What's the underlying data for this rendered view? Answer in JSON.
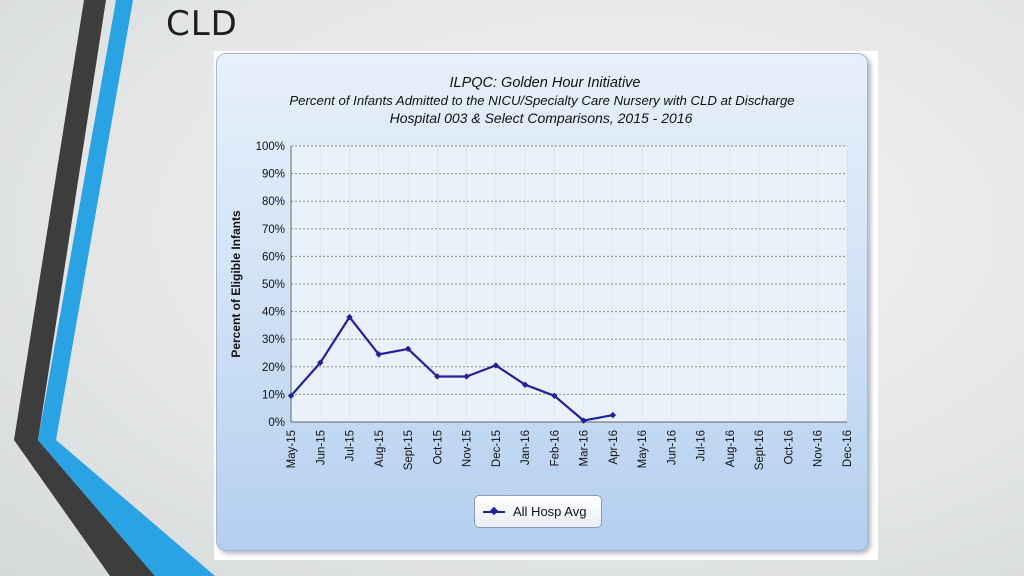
{
  "slide": {
    "title": "CLD"
  },
  "colors": {
    "series_line": "#21219a",
    "plot_background": "#e9f1fb",
    "gridline": "#8a8a8a",
    "deco_dark": "#3d3d3d",
    "deco_light": "#29a3e3"
  },
  "chart_data": {
    "type": "line",
    "title_lines": [
      "ILPQC: Golden Hour Initiative",
      "Percent of Infants Admitted to the NICU/Specialty Care Nursery with CLD at Discharge",
      "Hospital 003 & Select Comparisons, 2015 - 2016"
    ],
    "xlabel": "",
    "ylabel": "Percent of Eligible Infants",
    "categories": [
      "May-15",
      "Jun-15",
      "Jul-15",
      "Aug-15",
      "Sept-15",
      "Oct-15",
      "Nov-15",
      "Dec-15",
      "Jan-16",
      "Feb-16",
      "Mar-16",
      "Apr-16",
      "May-16",
      "Jun-16",
      "Jul-16",
      "Aug-16",
      "Sept-16",
      "Oct-16",
      "Nov-16",
      "Dec-16"
    ],
    "y_ticks": [
      "0%",
      "10%",
      "20%",
      "30%",
      "40%",
      "50%",
      "60%",
      "70%",
      "80%",
      "90%",
      "100%"
    ],
    "ylim": [
      0,
      100
    ],
    "grid": true,
    "legend_position": "bottom",
    "series": [
      {
        "name": "All Hosp Avg",
        "values": [
          9.5,
          21.5,
          38,
          24.5,
          26.5,
          16.5,
          16.5,
          20.5,
          13.5,
          9.5,
          0.5,
          2.5,
          null,
          null,
          null,
          null,
          null,
          null,
          null,
          null
        ]
      }
    ]
  }
}
